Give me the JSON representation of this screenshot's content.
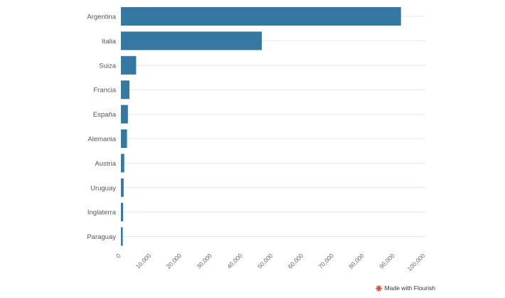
{
  "chart_data": {
    "type": "bar",
    "orientation": "horizontal",
    "categories": [
      "Argentina",
      "Italia",
      "Suiza",
      "Francia",
      "España",
      "Alemania",
      "Austria",
      "Uruguay",
      "Inglaterra",
      "Paraguay"
    ],
    "values": [
      92000,
      46300,
      5000,
      2800,
      2300,
      2000,
      1100,
      900,
      700,
      600
    ],
    "xlim": [
      0,
      100000
    ],
    "xticks": [
      0,
      10000,
      20000,
      30000,
      40000,
      50000,
      60000,
      70000,
      80000,
      90000,
      100000
    ],
    "xtick_labels": [
      "0",
      "10,000",
      "20,000",
      "30,000",
      "40,000",
      "50,000",
      "60,000",
      "70,000",
      "80,000",
      "90,000",
      "100,000"
    ],
    "bar_color": "#3579a1",
    "grid": true,
    "title": "",
    "xlabel": "",
    "ylabel": ""
  },
  "footer": {
    "credit": "Made with Flourish",
    "icon": "flourish-logo-icon",
    "icon_color": "#e8403a"
  }
}
